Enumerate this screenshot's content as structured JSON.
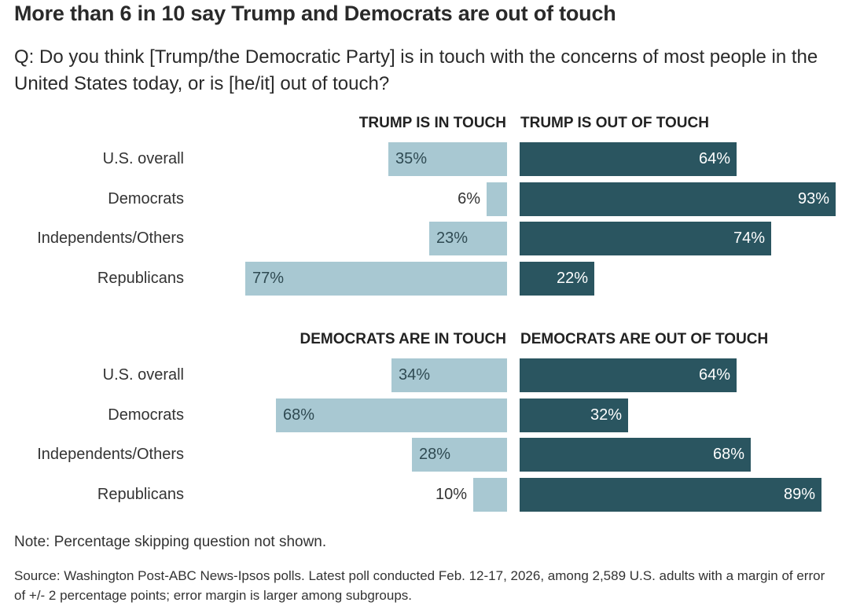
{
  "header": {
    "title": "More than 6 in 10 say Trump and Democrats are out of touch",
    "subtitle": "Q: Do you think [Trump/the Democratic Party] is in touch with the concerns of most people in the United States today, or is [he/it] out of touch?"
  },
  "colors": {
    "in_touch": "#a8c8d2",
    "out_of_touch": "#2a5560"
  },
  "chart_data": [
    {
      "type": "bar",
      "orientation": "diverging-horizontal",
      "title": "Trump",
      "categories": [
        "U.S. overall",
        "Democrats",
        "Independents/Others",
        "Republicans"
      ],
      "series": [
        {
          "name": "TRUMP IS IN TOUCH",
          "values": [
            35,
            6,
            23,
            77
          ]
        },
        {
          "name": "TRUMP IS OUT OF TOUCH",
          "values": [
            64,
            93,
            74,
            22
          ]
        }
      ],
      "unit": "%",
      "xlim": [
        0,
        100
      ],
      "grid": false
    },
    {
      "type": "bar",
      "orientation": "diverging-horizontal",
      "title": "Democrats",
      "categories": [
        "U.S. overall",
        "Democrats",
        "Independents/Others",
        "Republicans"
      ],
      "series": [
        {
          "name": "DEMOCRATS ARE IN TOUCH",
          "values": [
            34,
            68,
            28,
            10
          ]
        },
        {
          "name": "DEMOCRATS ARE OUT OF TOUCH",
          "values": [
            64,
            32,
            68,
            89
          ]
        }
      ],
      "unit": "%",
      "xlim": [
        0,
        100
      ],
      "grid": false
    }
  ],
  "footer": {
    "note": "Note: Percentage skipping question not shown.",
    "source": "Source: Washington Post-ABC News-Ipsos polls. Latest poll conducted Feb. 12-17, 2026, among 2,589 U.S. adults with a margin of error of +/- 2 percentage points; error margin is larger among subgroups."
  }
}
